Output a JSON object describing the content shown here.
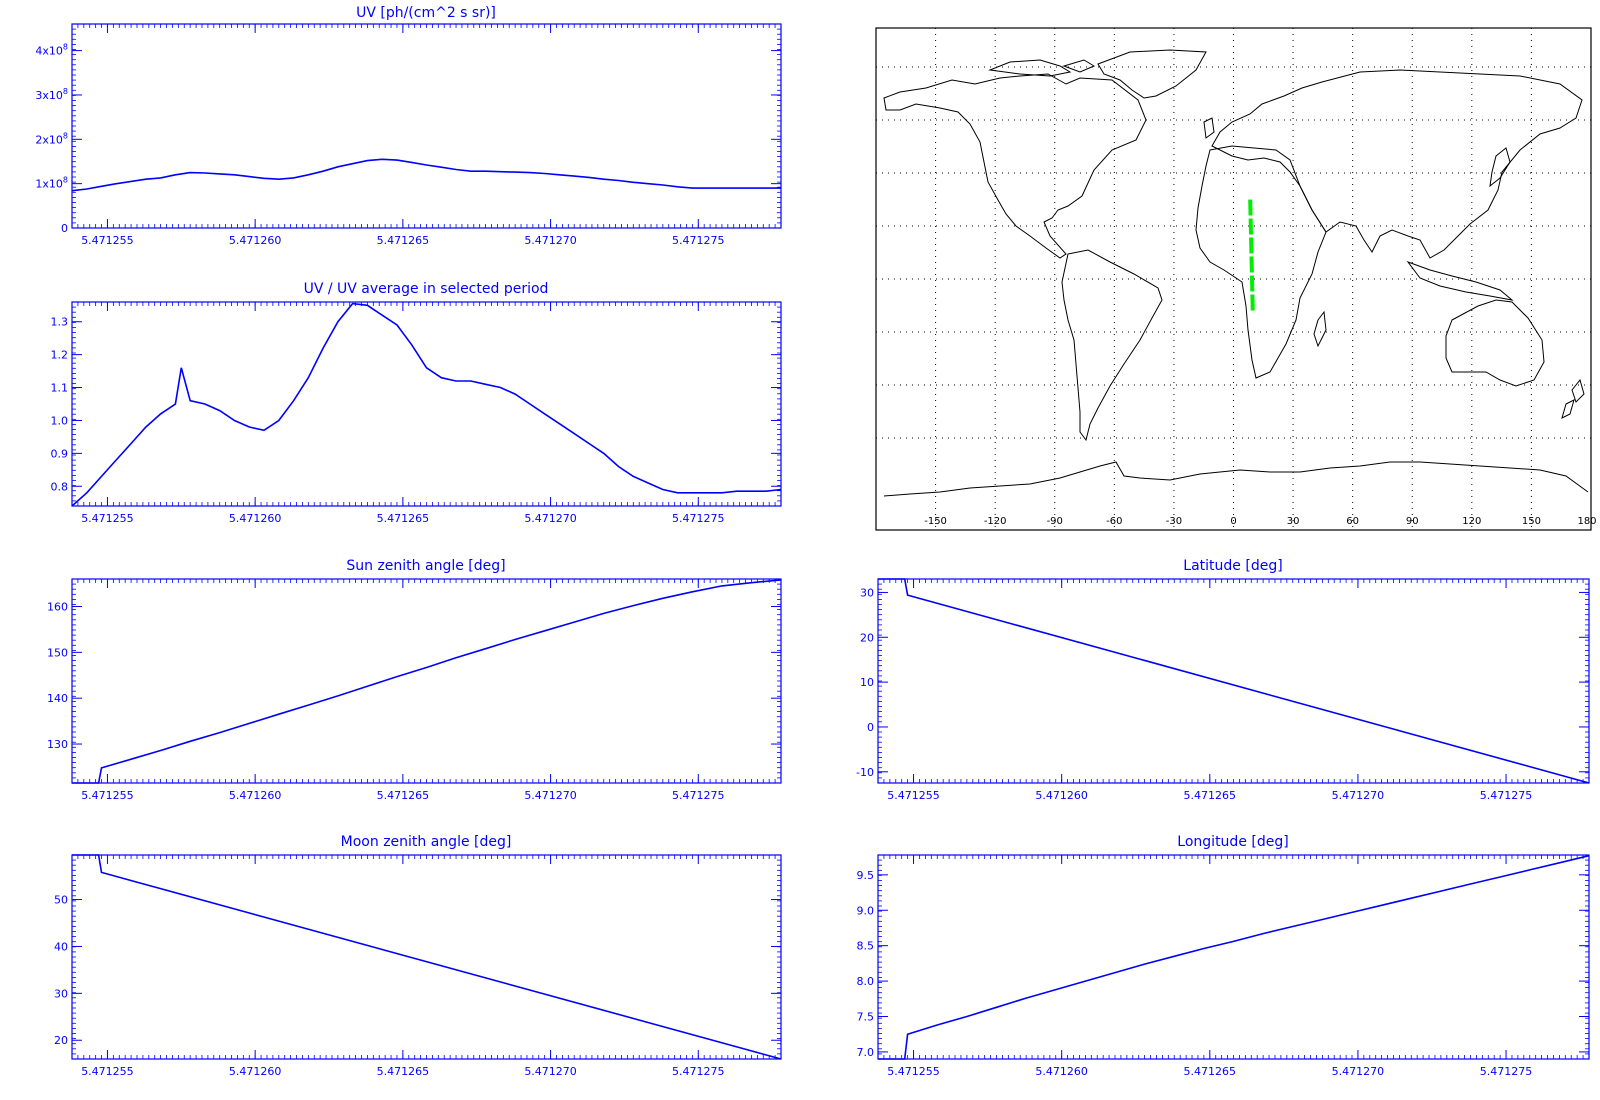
{
  "colors": {
    "plot": "#0000ff",
    "track": "#00ee00",
    "map_lines": "#000000",
    "background": "#ffffff"
  },
  "x_tick_labels": [
    "5.471255",
    "5.471260",
    "5.471265",
    "5.471270",
    "5.471275"
  ],
  "chart_data": [
    {
      "id": "uv",
      "type": "line",
      "title": "UV [ph/(cm^2 s sr)]",
      "xlim": [
        5.4712538,
        5.4712778
      ],
      "ylim": [
        0,
        460000000.0
      ],
      "y_ticks": [
        {
          "v": 0,
          "base": "0",
          "exp": ""
        },
        {
          "v": 100000000.0,
          "base": "1x10",
          "exp": "8"
        },
        {
          "v": 200000000.0,
          "base": "2x10",
          "exp": "8"
        },
        {
          "v": 300000000.0,
          "base": "3x10",
          "exp": "8"
        },
        {
          "v": 400000000.0,
          "base": "4x10",
          "exp": "8"
        }
      ],
      "x": [
        5.4712538,
        5.4712543,
        5.4712548,
        5.4712553,
        5.4712558,
        5.4712563,
        5.4712568,
        5.4712573,
        5.4712578,
        5.4712583,
        5.4712588,
        5.4712593,
        5.4712598,
        5.4712603,
        5.4712608,
        5.4712613,
        5.4712618,
        5.4712623,
        5.4712628,
        5.4712633,
        5.4712638,
        5.4712643,
        5.4712648,
        5.4712653,
        5.4712658,
        5.4712663,
        5.4712668,
        5.4712673,
        5.4712678,
        5.4712683,
        5.4712688,
        5.4712693,
        5.4712698,
        5.4712703,
        5.4712708,
        5.4712713,
        5.4712718,
        5.4712723,
        5.4712728,
        5.4712733,
        5.4712738,
        5.4712743,
        5.4712748,
        5.4712753,
        5.4712758,
        5.4712763,
        5.4712768,
        5.4712773,
        5.4712778
      ],
      "values": [
        84000000.0,
        88000000.0,
        94000000.0,
        100000000.0,
        105000000.0,
        110000000.0,
        113000000.0,
        120000000.0,
        125000000.0,
        124000000.0,
        122000000.0,
        120000000.0,
        116000000.0,
        112000000.0,
        110000000.0,
        113000000.0,
        120000000.0,
        128000000.0,
        138000000.0,
        145000000.0,
        152000000.0,
        155000000.0,
        153000000.0,
        148000000.0,
        142000000.0,
        137000000.0,
        132000000.0,
        128000000.0,
        128000000.0,
        127000000.0,
        126000000.0,
        125000000.0,
        123000000.0,
        120000000.0,
        117000000.0,
        114000000.0,
        110000000.0,
        107000000.0,
        103000000.0,
        100000000.0,
        97000000.0,
        93000000.0,
        90000000.0,
        90000000.0,
        90000000.0,
        90000000.0,
        90000000.0,
        90000000.0,
        90000000.0
      ]
    },
    {
      "id": "ratio",
      "type": "line",
      "title": "UV / UV average in selected period",
      "xlim": [
        5.4712538,
        5.4712778
      ],
      "ylim": [
        0.74,
        1.36
      ],
      "y_ticks": [
        {
          "v": 0.8,
          "base": "0.8",
          "exp": ""
        },
        {
          "v": 0.9,
          "base": "0.9",
          "exp": ""
        },
        {
          "v": 1.0,
          "base": "1.0",
          "exp": ""
        },
        {
          "v": 1.1,
          "base": "1.1",
          "exp": ""
        },
        {
          "v": 1.2,
          "base": "1.2",
          "exp": ""
        },
        {
          "v": 1.3,
          "base": "1.3",
          "exp": ""
        }
      ],
      "x": [
        5.4712538,
        5.4712543,
        5.4712548,
        5.4712553,
        5.4712558,
        5.4712563,
        5.4712568,
        5.4712573,
        5.4712575,
        5.4712578,
        5.4712583,
        5.4712588,
        5.4712593,
        5.4712598,
        5.4712603,
        5.4712608,
        5.4712613,
        5.4712618,
        5.4712623,
        5.4712628,
        5.4712633,
        5.4712638,
        5.4712643,
        5.4712648,
        5.4712653,
        5.4712658,
        5.4712663,
        5.4712668,
        5.4712673,
        5.4712678,
        5.4712683,
        5.4712688,
        5.4712693,
        5.4712698,
        5.4712703,
        5.4712708,
        5.4712713,
        5.4712718,
        5.4712723,
        5.4712728,
        5.4712733,
        5.4712738,
        5.4712743,
        5.4712748,
        5.4712753,
        5.4712758,
        5.4712763,
        5.4712768,
        5.4712773,
        5.4712778
      ],
      "values": [
        0.74,
        0.78,
        0.83,
        0.88,
        0.93,
        0.98,
        1.02,
        1.05,
        1.16,
        1.06,
        1.05,
        1.03,
        1.0,
        0.98,
        0.97,
        1.0,
        1.06,
        1.13,
        1.22,
        1.3,
        1.355,
        1.35,
        1.32,
        1.29,
        1.23,
        1.16,
        1.13,
        1.12,
        1.12,
        1.11,
        1.1,
        1.08,
        1.05,
        1.02,
        0.99,
        0.96,
        0.93,
        0.9,
        0.86,
        0.83,
        0.81,
        0.79,
        0.78,
        0.78,
        0.78,
        0.78,
        0.785,
        0.785,
        0.785,
        0.79
      ]
    },
    {
      "id": "sun",
      "type": "line",
      "title": "Sun zenith angle [deg]",
      "xlim": [
        5.4712538,
        5.4712778
      ],
      "ylim": [
        121.5,
        166
      ],
      "y_ticks": [
        {
          "v": 130,
          "base": "130",
          "exp": ""
        },
        {
          "v": 140,
          "base": "140",
          "exp": ""
        },
        {
          "v": 150,
          "base": "150",
          "exp": ""
        },
        {
          "v": 160,
          "base": "160",
          "exp": ""
        }
      ],
      "x": [
        5.4712538,
        5.4712547,
        5.4712548,
        5.4712558,
        5.4712568,
        5.4712578,
        5.4712588,
        5.4712598,
        5.4712608,
        5.4712618,
        5.4712628,
        5.4712638,
        5.4712648,
        5.4712658,
        5.4712668,
        5.4712678,
        5.4712688,
        5.4712698,
        5.4712708,
        5.4712718,
        5.4712728,
        5.4712738,
        5.4712748,
        5.4712758,
        5.4712768,
        5.4712778
      ],
      "values": [
        121.5,
        121.5,
        124.8,
        126.7,
        128.6,
        130.6,
        132.5,
        134.5,
        136.5,
        138.5,
        140.5,
        142.6,
        144.7,
        146.7,
        148.8,
        150.8,
        152.8,
        154.7,
        156.6,
        158.5,
        160.2,
        161.8,
        163.2,
        164.5,
        165.2,
        165.8
      ]
    },
    {
      "id": "latitude",
      "type": "line",
      "title": "Latitude [deg]",
      "xlim": [
        5.4712538,
        5.4712778
      ],
      "ylim": [
        -12.5,
        33
      ],
      "y_ticks": [
        {
          "v": -10,
          "base": "-10",
          "exp": ""
        },
        {
          "v": 0,
          "base": "0",
          "exp": ""
        },
        {
          "v": 10,
          "base": "10",
          "exp": ""
        },
        {
          "v": 20,
          "base": "20",
          "exp": ""
        },
        {
          "v": 30,
          "base": "30",
          "exp": ""
        }
      ],
      "x": [
        5.4712538,
        5.4712547,
        5.4712548,
        5.4712778
      ],
      "values": [
        33,
        33,
        29.4,
        -12.5
      ]
    },
    {
      "id": "moon",
      "type": "line",
      "title": "Moon zenith angle [deg]",
      "xlim": [
        5.4712538,
        5.4712778
      ],
      "ylim": [
        16,
        59.5
      ],
      "y_ticks": [
        {
          "v": 20,
          "base": "20",
          "exp": ""
        },
        {
          "v": 30,
          "base": "30",
          "exp": ""
        },
        {
          "v": 40,
          "base": "40",
          "exp": ""
        },
        {
          "v": 50,
          "base": "50",
          "exp": ""
        }
      ],
      "x": [
        5.4712538,
        5.4712547,
        5.4712548,
        5.4712778
      ],
      "values": [
        59.5,
        59.5,
        55.8,
        16
      ]
    },
    {
      "id": "longitude",
      "type": "line",
      "title": "Longitude [deg]",
      "xlim": [
        5.4712538,
        5.4712778
      ],
      "ylim": [
        6.9,
        9.78
      ],
      "y_ticks": [
        {
          "v": 7.0,
          "base": "7.0",
          "exp": ""
        },
        {
          "v": 7.5,
          "base": "7.5",
          "exp": ""
        },
        {
          "v": 8.0,
          "base": "8.0",
          "exp": ""
        },
        {
          "v": 8.5,
          "base": "8.5",
          "exp": ""
        },
        {
          "v": 9.0,
          "base": "9.0",
          "exp": ""
        },
        {
          "v": 9.5,
          "base": "9.5",
          "exp": ""
        }
      ],
      "x": [
        5.4712538,
        5.4712547,
        5.4712548,
        5.4712558,
        5.4712568,
        5.4712578,
        5.4712588,
        5.4712598,
        5.4712608,
        5.4712618,
        5.4712628,
        5.4712638,
        5.4712648,
        5.4712658,
        5.4712668,
        5.4712678,
        5.4712688,
        5.4712698,
        5.4712708,
        5.4712718,
        5.4712728,
        5.4712738,
        5.4712748,
        5.4712758,
        5.4712768,
        5.4712778
      ],
      "values": [
        6.9,
        6.9,
        7.25,
        7.38,
        7.5,
        7.63,
        7.76,
        7.88,
        8.0,
        8.12,
        8.24,
        8.35,
        8.46,
        8.56,
        8.67,
        8.77,
        8.87,
        8.97,
        9.07,
        9.17,
        9.27,
        9.37,
        9.47,
        9.57,
        9.67,
        9.77
      ]
    }
  ],
  "map": {
    "lon_ticks": [
      "-150",
      "-120",
      "-90",
      "-60",
      "-30",
      "0",
      "30",
      "60",
      "90",
      "120",
      "150",
      "180"
    ],
    "track": [
      {
        "lon": 8.4,
        "lat": 30
      },
      {
        "lon": 9.7,
        "lat": -12
      }
    ]
  }
}
